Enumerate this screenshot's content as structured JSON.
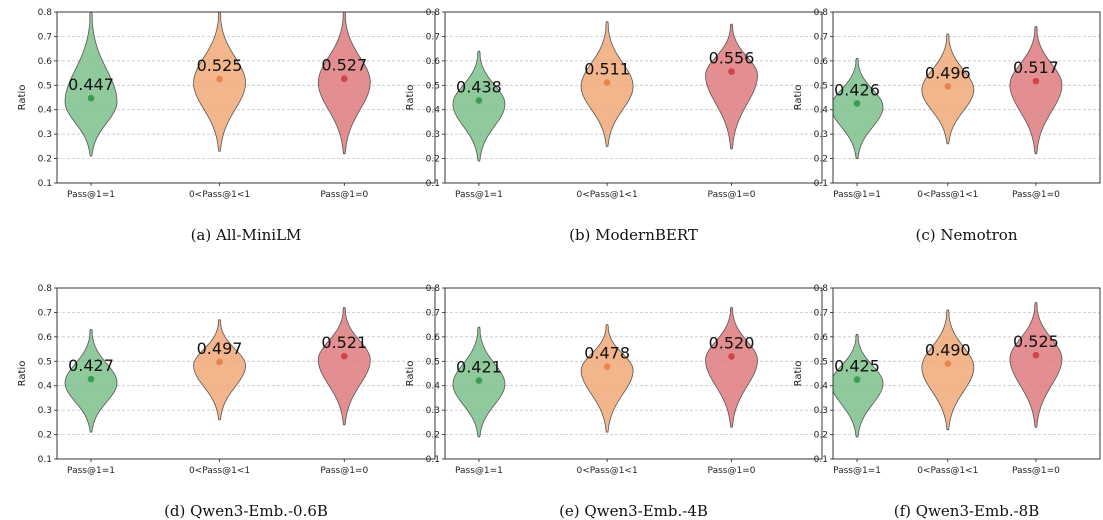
{
  "chart_data": [
    {
      "type": "violin",
      "caption": "(a) All-MiniLM",
      "ylabel": "Ratio",
      "ylim": [
        0.1,
        0.8
      ],
      "yticks": [
        "0.1",
        "0.2",
        "0.3",
        "0.4",
        "0.5",
        "0.6",
        "0.7",
        "0.8"
      ],
      "grid": "horizontal dashed",
      "categories": [
        "Pass@1=1",
        "0<Pass@1<1",
        "Pass@1=0"
      ],
      "means": [
        0.447,
        0.525,
        0.527
      ],
      "mean_labels": [
        "0.447",
        "0.525",
        "0.527"
      ],
      "ranges": [
        [
          0.21,
          0.8
        ],
        [
          0.23,
          0.8
        ],
        [
          0.22,
          0.8
        ]
      ],
      "colors": [
        "#7cc08a",
        "#f0a878",
        "#de7b7f"
      ]
    },
    {
      "type": "violin",
      "caption": "(b) ModernBERT",
      "ylabel": "Ratio",
      "ylim": [
        0.1,
        0.8
      ],
      "yticks": [
        "0.1",
        "0.2",
        "0.3",
        "0.4",
        "0.5",
        "0.6",
        "0.7",
        "0.8"
      ],
      "grid": "horizontal dashed",
      "categories": [
        "Pass@1=1",
        "0<Pass@1<1",
        "Pass@1=0"
      ],
      "means": [
        0.438,
        0.511,
        0.556
      ],
      "mean_labels": [
        "0.438",
        "0.511",
        "0.556"
      ],
      "ranges": [
        [
          0.19,
          0.64
        ],
        [
          0.25,
          0.76
        ],
        [
          0.24,
          0.75
        ]
      ],
      "colors": [
        "#7cc08a",
        "#f0a878",
        "#de7b7f"
      ]
    },
    {
      "type": "violin",
      "caption": "(c) Nemotron",
      "ylabel": "Ratio",
      "ylim": [
        0.1,
        0.8
      ],
      "yticks": [
        "0.1",
        "0.2",
        "0.3",
        "0.4",
        "0.5",
        "0.6",
        "0.7",
        "0.8"
      ],
      "grid": "horizontal dashed",
      "categories": [
        "Pass@1=1",
        "0<Pass@1<1",
        "Pass@1=0"
      ],
      "means": [
        0.426,
        0.496,
        0.517
      ],
      "mean_labels": [
        "0.426",
        "0.496",
        "0.517"
      ],
      "ranges": [
        [
          0.2,
          0.61
        ],
        [
          0.26,
          0.71
        ],
        [
          0.22,
          0.74
        ]
      ],
      "colors": [
        "#7cc08a",
        "#f0a878",
        "#de7b7f"
      ]
    },
    {
      "type": "violin",
      "caption": "(d) Qwen3-Emb.-0.6B",
      "ylabel": "Ratio",
      "ylim": [
        0.1,
        0.8
      ],
      "yticks": [
        "0.1",
        "0.2",
        "0.3",
        "0.4",
        "0.5",
        "0.6",
        "0.7",
        "0.8"
      ],
      "grid": "horizontal dashed",
      "categories": [
        "Pass@1=1",
        "0<Pass@1<1",
        "Pass@1=0"
      ],
      "means": [
        0.427,
        0.497,
        0.521
      ],
      "mean_labels": [
        "0.427",
        "0.497",
        "0.521"
      ],
      "ranges": [
        [
          0.21,
          0.63
        ],
        [
          0.26,
          0.67
        ],
        [
          0.24,
          0.72
        ]
      ],
      "colors": [
        "#7cc08a",
        "#f0a878",
        "#de7b7f"
      ]
    },
    {
      "type": "violin",
      "caption": "(e) Qwen3-Emb.-4B",
      "ylabel": "Ratio",
      "ylim": [
        0.1,
        0.8
      ],
      "yticks": [
        "0.1",
        "0.2",
        "0.3",
        "0.4",
        "0.5",
        "0.6",
        "0.7",
        "0.8"
      ],
      "grid": "horizontal dashed",
      "categories": [
        "Pass@1=1",
        "0<Pass@1<1",
        "Pass@1=0"
      ],
      "means": [
        0.421,
        0.478,
        0.52
      ],
      "mean_labels": [
        "0.421",
        "0.478",
        "0.520"
      ],
      "ranges": [
        [
          0.19,
          0.64
        ],
        [
          0.21,
          0.65
        ],
        [
          0.23,
          0.72
        ]
      ],
      "colors": [
        "#7cc08a",
        "#f0a878",
        "#de7b7f"
      ]
    },
    {
      "type": "violin",
      "caption": "(f) Qwen3-Emb.-8B",
      "ylabel": "Ratio",
      "ylim": [
        0.1,
        0.8
      ],
      "yticks": [
        "0.1",
        "0.2",
        "0.3",
        "0.4",
        "0.5",
        "0.6",
        "0.7",
        "0.8"
      ],
      "grid": "horizontal dashed",
      "categories": [
        "Pass@1=1",
        "0<Pass@1<1",
        "Pass@1=0"
      ],
      "means": [
        0.425,
        0.49,
        0.525
      ],
      "mean_labels": [
        "0.425",
        "0.490",
        "0.525"
      ],
      "ranges": [
        [
          0.19,
          0.61
        ],
        [
          0.22,
          0.71
        ],
        [
          0.23,
          0.74
        ]
      ],
      "colors": [
        "#7cc08a",
        "#f0a878",
        "#de7b7f"
      ]
    }
  ],
  "style": {
    "mean_dot_colors": [
      "#3a9d52",
      "#e8834a",
      "#d0434a"
    ],
    "violin_edge": "#555555",
    "grid_color": "#bbbbbb"
  }
}
